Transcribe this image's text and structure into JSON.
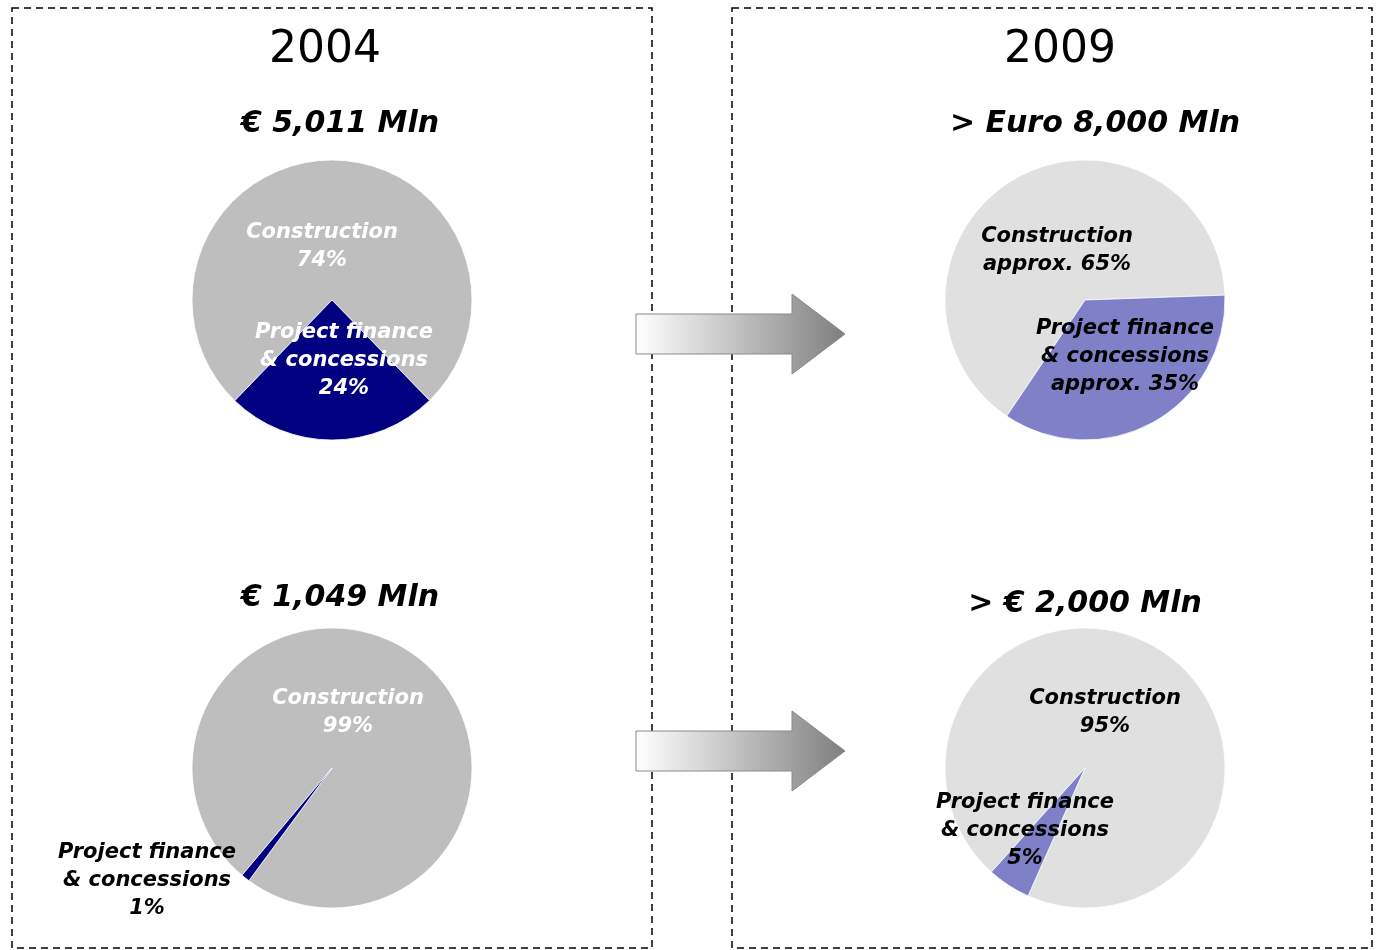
{
  "chart_data": [
    {
      "type": "pie",
      "title": "2004",
      "subtitle": "€ 5,011 Mln",
      "categories": [
        "Construction",
        "Project finance & concessions"
      ],
      "values": [
        74,
        24
      ],
      "value_labels": [
        "74%",
        "24%"
      ],
      "colors": [
        "#bebebe",
        "#000080"
      ]
    },
    {
      "type": "pie",
      "title": "2009",
      "subtitle": "> Euro 8,000 Mln",
      "categories": [
        "Construction",
        "Project finance & concessions"
      ],
      "values": [
        65,
        35
      ],
      "value_labels": [
        "approx. 65%",
        "approx. 35%"
      ],
      "colors": [
        "#e0e0e0",
        "#8080c8"
      ]
    },
    {
      "type": "pie",
      "title": "€ 1,049 Mln",
      "categories": [
        "Construction",
        "Project finance & concessions"
      ],
      "values": [
        99,
        1
      ],
      "value_labels": [
        "99%",
        "1%"
      ],
      "colors": [
        "#bebebe",
        "#000080"
      ]
    },
    {
      "type": "pie",
      "title": "> € 2,000 Mln",
      "categories": [
        "Construction",
        "Project finance & concessions"
      ],
      "values": [
        95,
        5
      ],
      "value_labels": [
        "95%",
        "5%"
      ],
      "colors": [
        "#e0e0e0",
        "#8080c8"
      ]
    }
  ]
}
